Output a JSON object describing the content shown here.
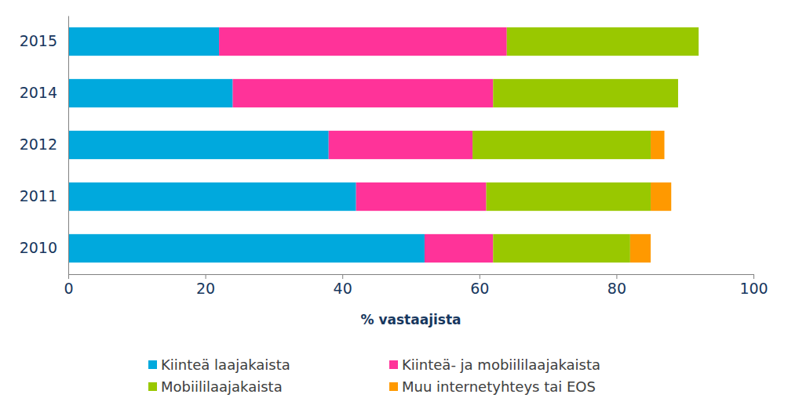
{
  "chart_data": {
    "type": "bar",
    "orientation": "horizontal",
    "stacked": true,
    "categories": [
      "2015",
      "2014",
      "2012",
      "2011",
      "2010"
    ],
    "series": [
      {
        "name": "Kiinteä laajakaista",
        "color": "#00a9dd",
        "values": [
          22,
          24,
          38,
          42,
          52
        ]
      },
      {
        "name": "Kiinteä- ja mobiililaajakaista",
        "color": "#ff3399",
        "values": [
          42,
          38,
          21,
          19,
          10
        ]
      },
      {
        "name": "Mobiililaajakaista",
        "color": "#99c800",
        "values": [
          28,
          27,
          26,
          24,
          20
        ]
      },
      {
        "name": "Muu internetyhteys tai EOS",
        "color": "#ff9900",
        "values": [
          0,
          0,
          2,
          3,
          3
        ]
      }
    ],
    "xlabel": "% vastaajista",
    "xlim": [
      0,
      100
    ],
    "xticks": [
      0,
      20,
      40,
      60,
      80,
      100
    ],
    "grid": false,
    "legend": "bottom"
  }
}
